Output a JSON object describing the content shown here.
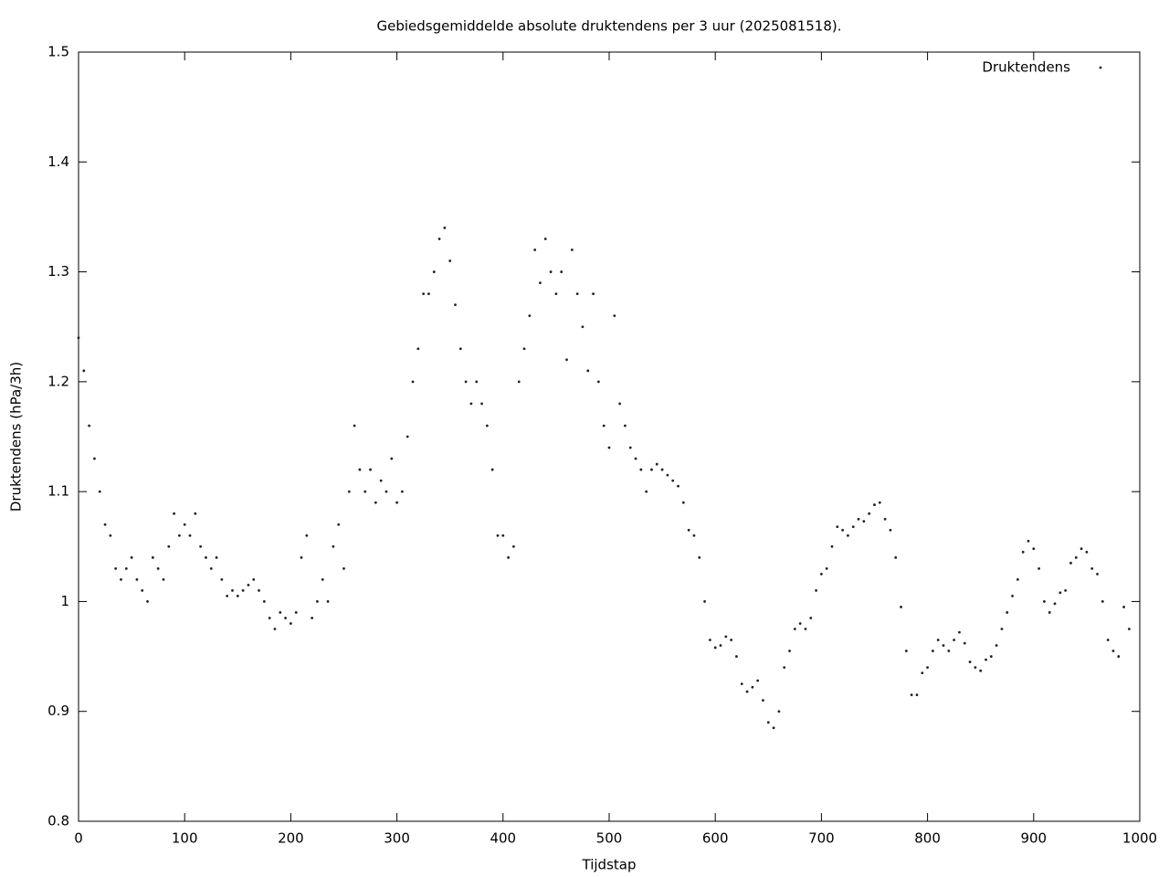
{
  "chart_data": {
    "type": "scatter",
    "title": "Gebiedsgemiddelde absolute druktendens per 3 uur (2025081518).",
    "x_label": "Tijdstap",
    "y_label": "Druktendens (hPa/3h)",
    "xlim": [
      0,
      1000
    ],
    "ylim": [
      0.8,
      1.5
    ],
    "xticks": [
      0,
      100,
      200,
      300,
      400,
      500,
      600,
      700,
      800,
      900,
      1000
    ],
    "yticks": [
      0.8,
      0.9,
      1,
      1.1,
      1.2,
      1.3,
      1.4,
      1.5
    ],
    "legend": "top-right",
    "x": [
      0,
      5,
      10,
      15,
      20,
      25,
      30,
      35,
      40,
      45,
      50,
      55,
      60,
      65,
      70,
      75,
      80,
      85,
      90,
      95,
      100,
      105,
      110,
      115,
      120,
      125,
      130,
      135,
      140,
      145,
      150,
      155,
      160,
      165,
      170,
      175,
      180,
      185,
      190,
      195,
      200,
      205,
      210,
      215,
      220,
      225,
      230,
      235,
      240,
      245,
      250,
      255,
      260,
      265,
      270,
      275,
      280,
      285,
      290,
      295,
      300,
      305,
      310,
      315,
      320,
      325,
      330,
      335,
      340,
      345,
      350,
      355,
      360,
      365,
      370,
      375,
      380,
      385,
      390,
      395,
      400,
      405,
      410,
      415,
      420,
      425,
      430,
      435,
      440,
      445,
      450,
      455,
      460,
      465,
      470,
      475,
      480,
      485,
      490,
      495,
      500,
      505,
      510,
      515,
      520,
      525,
      530,
      535,
      540,
      545,
      550,
      555,
      560,
      565,
      570,
      575,
      580,
      585,
      590,
      595,
      600,
      605,
      610,
      615,
      620,
      625,
      630,
      635,
      640,
      645,
      650,
      655,
      660,
      665,
      670,
      675,
      680,
      685,
      690,
      695,
      700,
      705,
      710,
      715,
      720,
      725,
      730,
      735,
      740,
      745,
      750,
      755,
      760,
      765,
      770,
      775,
      780,
      785,
      790,
      795,
      800,
      805,
      810,
      815,
      820,
      825,
      830,
      835,
      840,
      845,
      850,
      855,
      860,
      865,
      870,
      875,
      880,
      885,
      890,
      895,
      900,
      905,
      910,
      915,
      920,
      925,
      930,
      935,
      940,
      945,
      950,
      955,
      960,
      965,
      970,
      975,
      980,
      985,
      990
    ],
    "series": [
      {
        "name": "Druktendens",
        "color": "#222222",
        "values": [
          1.24,
          1.21,
          1.16,
          1.13,
          1.1,
          1.07,
          1.06,
          1.03,
          1.02,
          1.03,
          1.04,
          1.02,
          1.01,
          1.0,
          1.04,
          1.03,
          1.02,
          1.05,
          1.08,
          1.06,
          1.07,
          1.06,
          1.08,
          1.05,
          1.04,
          1.03,
          1.04,
          1.02,
          1.005,
          1.01,
          1.005,
          1.01,
          1.015,
          1.02,
          1.01,
          1.0,
          0.985,
          0.975,
          0.99,
          0.985,
          0.98,
          0.99,
          1.04,
          1.06,
          0.985,
          1.0,
          1.02,
          1.0,
          1.05,
          1.07,
          1.03,
          1.1,
          1.16,
          1.12,
          1.1,
          1.12,
          1.09,
          1.11,
          1.1,
          1.13,
          1.09,
          1.1,
          1.15,
          1.2,
          1.23,
          1.28,
          1.28,
          1.3,
          1.33,
          1.34,
          1.31,
          1.27,
          1.23,
          1.2,
          1.18,
          1.2,
          1.18,
          1.16,
          1.12,
          1.06,
          1.06,
          1.04,
          1.05,
          1.2,
          1.23,
          1.26,
          1.32,
          1.29,
          1.33,
          1.3,
          1.28,
          1.3,
          1.22,
          1.32,
          1.28,
          1.25,
          1.21,
          1.28,
          1.2,
          1.16,
          1.14,
          1.26,
          1.18,
          1.16,
          1.14,
          1.13,
          1.12,
          1.1,
          1.12,
          1.125,
          1.12,
          1.115,
          1.11,
          1.105,
          1.09,
          1.065,
          1.06,
          1.04,
          1.0,
          0.965,
          0.958,
          0.96,
          0.968,
          0.965,
          0.95,
          0.925,
          0.918,
          0.922,
          0.928,
          0.91,
          0.89,
          0.885,
          0.9,
          0.94,
          0.955,
          0.975,
          0.98,
          0.975,
          0.985,
          1.01,
          1.025,
          1.03,
          1.05,
          1.068,
          1.065,
          1.06,
          1.068,
          1.075,
          1.073,
          1.08,
          1.088,
          1.09,
          1.075,
          1.065,
          1.04,
          0.995,
          0.955,
          0.915,
          0.915,
          0.935,
          0.94,
          0.955,
          0.965,
          0.96,
          0.955,
          0.965,
          0.972,
          0.962,
          0.945,
          0.94,
          0.937,
          0.947,
          0.95,
          0.96,
          0.975,
          0.99,
          1.005,
          1.02,
          1.045,
          1.055,
          1.048,
          1.03,
          1.0,
          0.99,
          0.998,
          1.008,
          1.01,
          1.035,
          1.04,
          1.048,
          1.045,
          1.03,
          1.025,
          1.0,
          0.965,
          0.955,
          0.95,
          0.995,
          0.975
        ]
      }
    ]
  }
}
